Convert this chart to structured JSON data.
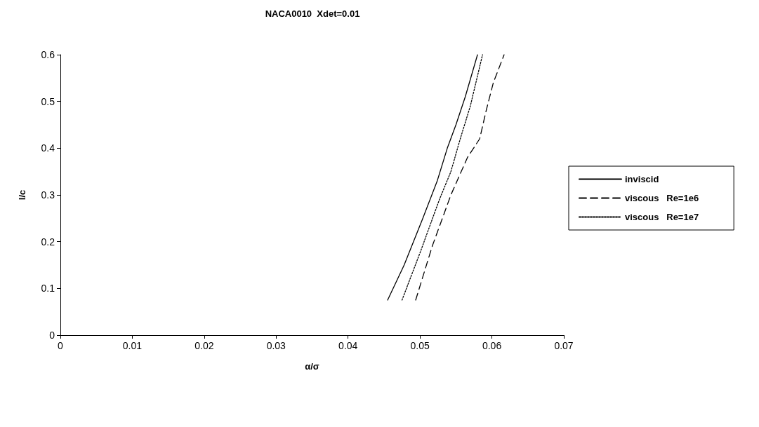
{
  "chart_data": {
    "type": "line",
    "title": "NACA0010  Xdet=0.01",
    "xlabel": "α/σ",
    "ylabel": "l/c",
    "xlim": [
      0,
      0.07
    ],
    "xticks": [
      0,
      0.01,
      0.02,
      0.03,
      0.04,
      0.05,
      0.06,
      0.07
    ],
    "ylim": [
      0,
      0.6
    ],
    "yticks": [
      0,
      0.1,
      0.2,
      0.3,
      0.4,
      0.5,
      0.6
    ],
    "grid": false,
    "legend": "right",
    "marker": "none",
    "series": [
      {
        "name": "inviscid",
        "color": "#000000",
        "line_style": "solid",
        "x": [
          0.0455,
          0.0478,
          0.0504,
          0.0524,
          0.0538,
          0.055,
          0.0563,
          0.058
        ],
        "values": [
          0.075,
          0.15,
          0.25,
          0.33,
          0.4,
          0.45,
          0.51,
          0.6
        ]
      },
      {
        "name": "viscous   Re=1e6",
        "color": "#000000",
        "line_style": "dashed",
        "x": [
          0.0494,
          0.0517,
          0.0543,
          0.0566,
          0.0583,
          0.0592,
          0.0602,
          0.0617
        ],
        "values": [
          0.075,
          0.19,
          0.3,
          0.38,
          0.42,
          0.48,
          0.54,
          0.6
        ]
      },
      {
        "name": "viscous   Re=1e7",
        "color": "#000000",
        "line_style": "dotted",
        "x": [
          0.0475,
          0.0501,
          0.0527,
          0.0543,
          0.0556,
          0.057,
          0.0587
        ],
        "values": [
          0.075,
          0.18,
          0.29,
          0.35,
          0.42,
          0.49,
          0.6
        ]
      }
    ]
  }
}
